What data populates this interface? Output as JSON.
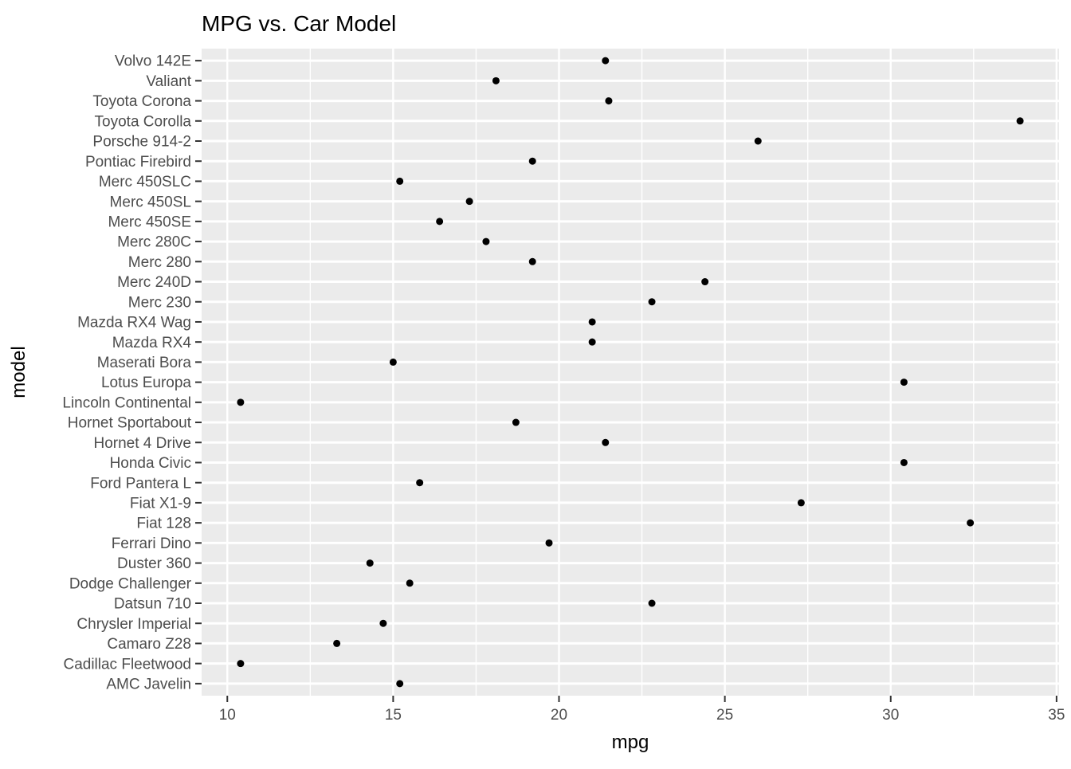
{
  "chart_data": {
    "type": "scatter",
    "title": "MPG vs. Car Model",
    "xlabel": "mpg",
    "ylabel": "model",
    "xlim": [
      9.225,
      35.075
    ],
    "x_ticks": [
      10,
      15,
      20,
      25,
      30,
      35
    ],
    "x_minor_ticks": [
      12.5,
      17.5,
      22.5,
      27.5,
      32.5
    ],
    "grid": true,
    "legend": false,
    "categories": [
      "Volvo 142E",
      "Valiant",
      "Toyota Corona",
      "Toyota Corolla",
      "Porsche 914-2",
      "Pontiac Firebird",
      "Merc 450SLC",
      "Merc 450SL",
      "Merc 450SE",
      "Merc 280C",
      "Merc 280",
      "Merc 240D",
      "Merc 230",
      "Mazda RX4 Wag",
      "Mazda RX4",
      "Maserati Bora",
      "Lotus Europa",
      "Lincoln Continental",
      "Hornet Sportabout",
      "Hornet 4 Drive",
      "Honda Civic",
      "Ford Pantera L",
      "Fiat X1-9",
      "Fiat 128",
      "Ferrari Dino",
      "Duster 360",
      "Dodge Challenger",
      "Datsun 710",
      "Chrysler Imperial",
      "Camaro Z28",
      "Cadillac Fleetwood",
      "AMC Javelin"
    ],
    "values": [
      21.4,
      18.1,
      21.5,
      33.9,
      26.0,
      19.2,
      15.2,
      17.3,
      16.4,
      17.8,
      19.2,
      24.4,
      22.8,
      21.0,
      21.0,
      15.0,
      30.4,
      10.4,
      18.7,
      21.4,
      30.4,
      15.8,
      27.3,
      32.4,
      19.7,
      14.3,
      15.5,
      22.8,
      14.7,
      13.3,
      10.4,
      15.2
    ],
    "colors": {
      "panel_bg": "#EBEBEB",
      "grid": "#FFFFFF",
      "point": "#000000",
      "axis_text": "#4D4D4D",
      "tick": "#333333",
      "title": "#000000"
    }
  }
}
